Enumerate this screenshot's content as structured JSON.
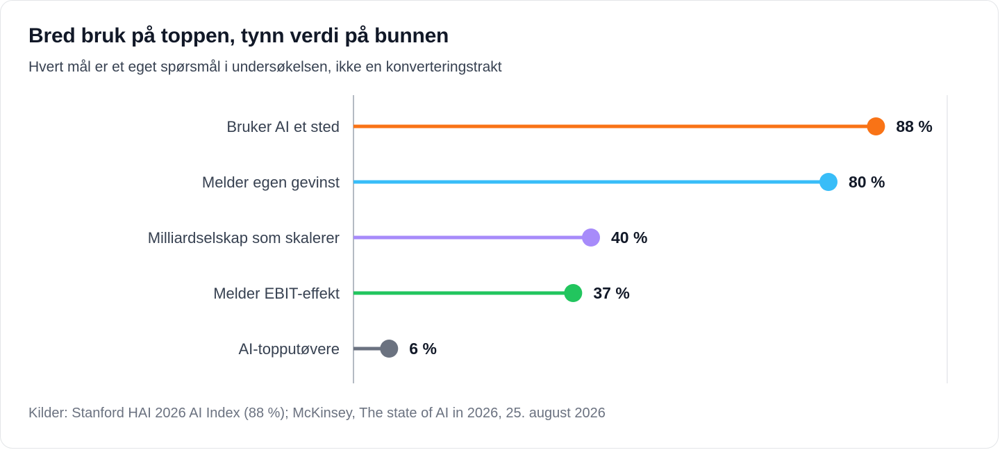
{
  "header": {
    "title": "Bred bruk på toppen, tynn verdi på bunnen",
    "subtitle": "Hvert mål er et eget spørsmål i undersøkelsen, ikke en konverteringstrakt"
  },
  "footer": {
    "source": "Kilder: Stanford HAI 2026 AI Index (88 %); McKinsey, The state of AI in 2026, 25. august 2026"
  },
  "chart_data": {
    "type": "bar",
    "style": "lollipop",
    "orientation": "horizontal",
    "title": "Bred bruk på toppen, tynn verdi på bunnen",
    "subtitle": "Hvert mål er et eget spørsmål i undersøkelsen, ikke en konverteringstrakt",
    "categories": [
      "Bruker AI et sted",
      "Melder egen gevinst",
      "Milliardselskap som skalerer",
      "Melder EBIT-effekt",
      "AI-topputøvere"
    ],
    "values": [
      88,
      80,
      40,
      37,
      6
    ],
    "value_labels": [
      "88 %",
      "80 %",
      "40 %",
      "37 %",
      "6 %"
    ],
    "colors": [
      "#f97316",
      "#38bdf8",
      "#a78bfa",
      "#22c55e",
      "#6b7280"
    ],
    "xlim": [
      0,
      100
    ],
    "grid": false,
    "legend": "none"
  }
}
